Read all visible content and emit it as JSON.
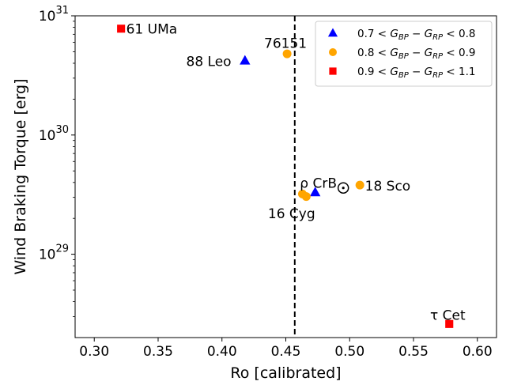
{
  "chart_data": {
    "type": "scatter",
    "title": "",
    "xlabel": "Ro [calibrated]",
    "ylabel": "Wind Braking Torque [erg]",
    "xlim": [
      0.285,
      0.615
    ],
    "ylim": [
      2e+28,
      1e+31
    ],
    "yscale": "log",
    "grid": false,
    "legend_position": "top-right",
    "vline": {
      "x": 0.457,
      "style": "dashed",
      "color": "#000000"
    },
    "x_ticks": [
      "0.30",
      "0.35",
      "0.40",
      "0.45",
      "0.50",
      "0.55",
      "0.60"
    ],
    "x_tick_values": [
      0.3,
      0.35,
      0.4,
      0.45,
      0.5,
      0.55,
      0.6
    ],
    "y_ticks": [
      {
        "value": 1e+29,
        "base": "10",
        "exp": "29"
      },
      {
        "value": 1e+30,
        "base": "10",
        "exp": "30"
      },
      {
        "value": 1e+31,
        "base": "10",
        "exp": "31"
      }
    ],
    "series": [
      {
        "name": "0.7 < G_BP − G_RP < 0.8",
        "legend_math": {
          "lo": "0.7",
          "hi": "0.8"
        },
        "marker": "triangle",
        "color": "#0000ff",
        "points": [
          {
            "x": 0.418,
            "y": 4.2e+30,
            "label": "88 Leo"
          },
          {
            "x": 0.473,
            "y": 3.3e+29
          }
        ]
      },
      {
        "name": "0.8 < G_BP − G_RP < 0.9",
        "legend_math": {
          "lo": "0.8",
          "hi": "0.9"
        },
        "marker": "circle",
        "color": "#ffa500",
        "points": [
          {
            "x": 0.451,
            "y": 4.8e+30,
            "label": "76151"
          },
          {
            "x": 0.463,
            "y": 3.2e+29
          },
          {
            "x": 0.466,
            "y": 3.05e+29
          },
          {
            "x": 0.508,
            "y": 3.8e+29,
            "label": "18 Sco"
          }
        ]
      },
      {
        "name": "0.9 < G_BP − G_RP < 1.1",
        "legend_math": {
          "lo": "0.9",
          "hi": "1.1"
        },
        "marker": "square",
        "color": "#ff0000",
        "points": [
          {
            "x": 0.321,
            "y": 7.8e+30,
            "label": "61 UMa"
          },
          {
            "x": 0.578,
            "y": 2.6e+28
          }
        ]
      }
    ],
    "sun": {
      "x": 0.495,
      "y": 3.6e+29,
      "symbol": "⊙"
    },
    "annotations": [
      {
        "text": "61 UMa",
        "x": 0.325,
        "y": 7.8e+30
      },
      {
        "text": "76151",
        "x": 0.433,
        "y": 5.9e+30
      },
      {
        "text": "88 Leo",
        "x": 0.372,
        "y": 4.15e+30
      },
      {
        "text": "ρ CrB",
        "x": 0.461,
        "y": 3.95e+29
      },
      {
        "text": "18 Sco",
        "x": 0.512,
        "y": 3.75e+29
      },
      {
        "text": "16 Cyg",
        "x": 0.436,
        "y": 2.2e+29
      },
      {
        "text": "τ Cet",
        "x": 0.563,
        "y": 3.1e+28
      }
    ]
  }
}
